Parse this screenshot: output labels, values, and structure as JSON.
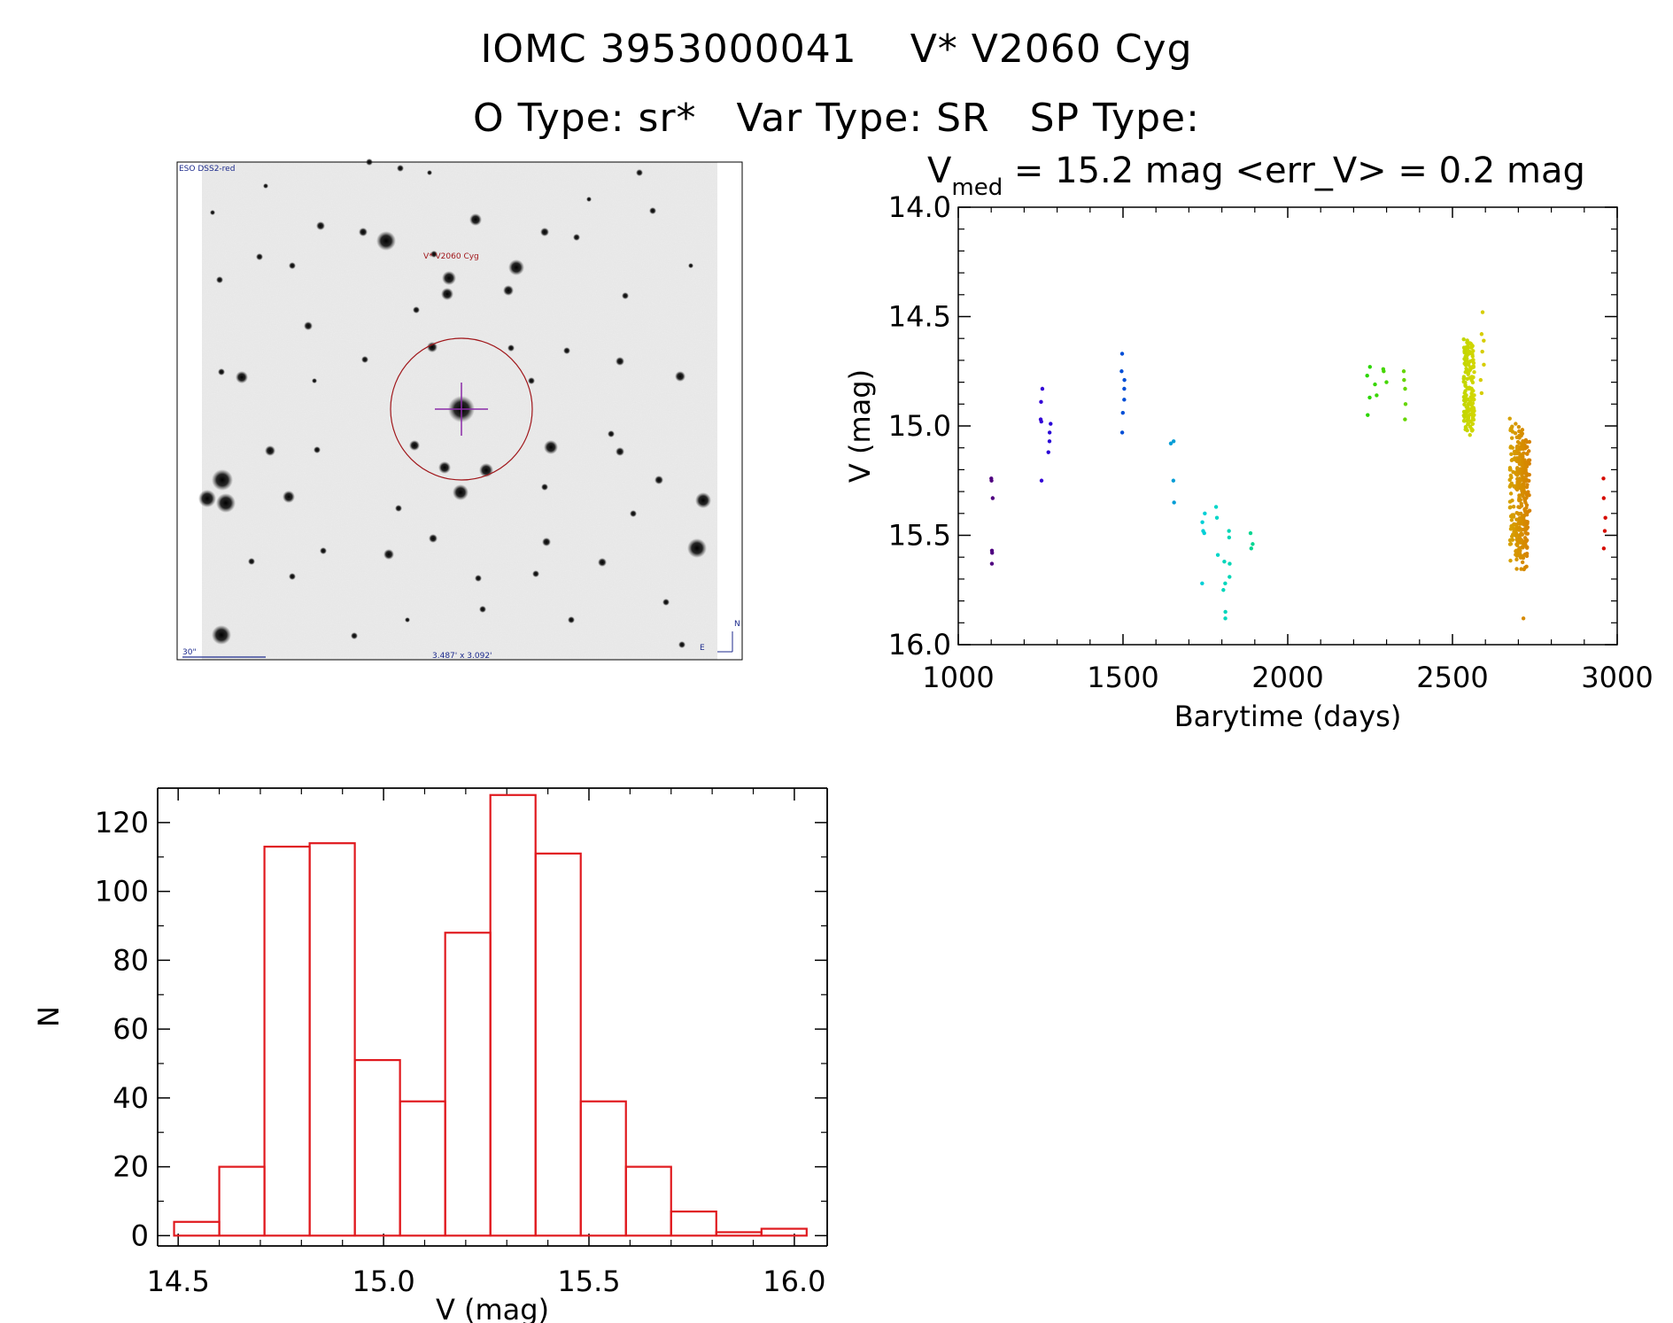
{
  "header": {
    "object_id": "IOMC 3953000041",
    "object_name": "V* V2060 Cyg",
    "o_type": "O Type: sr*",
    "var_type": "Var Type: SR",
    "sp_type": "SP Type:"
  },
  "finder": {
    "survey_label": "ESO DSS2-red",
    "target_label": "V* V2060 Cyg",
    "scale_label": "30\"",
    "fov_label": "3.487' x 3.092'",
    "compass_n": "N",
    "compass_e": "E"
  },
  "colors": {
    "histogram": "#e0191e",
    "finder_circle": "#a0161a",
    "finder_cross": "#8a2ba8",
    "finder_text": "#1c2a8c"
  },
  "chart_data": [
    {
      "type": "scatter",
      "subtitle_prefix": "V",
      "subtitle_sub": "med",
      "subtitle_rest": " = 15.2 mag <err_V> = 0.2 mag",
      "xlabel": "Barytime (days)",
      "ylabel": "V (mag)",
      "xlim": [
        1000,
        3000
      ],
      "ylim": [
        16.0,
        14.0
      ],
      "y_inverted": true,
      "x_ticks": [
        1000,
        1500,
        2000,
        2500,
        3000
      ],
      "y_ticks": [
        "14.0",
        "14.5",
        "15.0",
        "15.5",
        "16.0"
      ],
      "color_by": "time (rainbow)",
      "groups": [
        {
          "x": 1100,
          "y": [
            15.25,
            15.24,
            15.33,
            15.57,
            15.58,
            15.63
          ]
        },
        {
          "x": 1255,
          "y": [
            14.83,
            14.89,
            14.97,
            14.98,
            15.25
          ]
        },
        {
          "x": 1275,
          "y": [
            14.99,
            15.03,
            15.07,
            15.12
          ]
        },
        {
          "x": 1500,
          "y": [
            14.67,
            14.75,
            14.79,
            14.83,
            14.88,
            14.94,
            15.03
          ]
        },
        {
          "x": 1650,
          "y": [
            15.07,
            15.08,
            15.25,
            15.35
          ]
        },
        {
          "x": 1745,
          "y": [
            15.4,
            15.44,
            15.48,
            15.49,
            15.72
          ]
        },
        {
          "x": 1785,
          "y": [
            15.37,
            15.42,
            15.59
          ]
        },
        {
          "x": 1810,
          "y": [
            15.62,
            15.72,
            15.75,
            15.85,
            15.88
          ]
        },
        {
          "x": 1820,
          "y": [
            15.48,
            15.51,
            15.63,
            15.69
          ]
        },
        {
          "x": 1890,
          "y": [
            15.49,
            15.54,
            15.56
          ]
        },
        {
          "x": 2245,
          "y": [
            14.73,
            14.77,
            14.87,
            14.95
          ]
        },
        {
          "x": 2270,
          "y": [
            14.81,
            14.86
          ]
        },
        {
          "x": 2295,
          "y": [
            14.74,
            14.75,
            14.8
          ]
        },
        {
          "x": 2355,
          "y": [
            14.75,
            14.79,
            14.83,
            14.9,
            14.97
          ]
        },
        {
          "x": 2550,
          "y_range": [
            14.57,
            15.06
          ],
          "count": 160
        },
        {
          "x": 2590,
          "y": [
            14.48,
            14.58,
            14.61,
            14.66,
            14.72,
            14.79,
            14.85
          ]
        },
        {
          "x": 2690,
          "y_range": [
            14.9,
            15.65
          ],
          "count": 110
        },
        {
          "x": 2710,
          "y_range": [
            15.0,
            15.7
          ],
          "count": 110
        },
        {
          "x": 2718,
          "y_range": [
            15.0,
            15.68
          ],
          "count": 110
        },
        {
          "x": 2718,
          "y": [
            15.88
          ]
        },
        {
          "x": 2960,
          "y": [
            15.24,
            15.33,
            15.42,
            15.48,
            15.56
          ]
        }
      ]
    },
    {
      "type": "bar",
      "style": "histogram-outline",
      "xlabel": "V (mag)",
      "ylabel": "N",
      "xlim": [
        14.45,
        16.08
      ],
      "ylim": [
        -3,
        130
      ],
      "x_ticks": [
        "14.5",
        "15.0",
        "15.5",
        "16.0"
      ],
      "y_ticks": [
        "0",
        "20",
        "40",
        "60",
        "80",
        "100",
        "120"
      ],
      "bin_edges": [
        14.49,
        14.6,
        14.71,
        14.82,
        14.93,
        15.04,
        15.15,
        15.26,
        15.37,
        15.48,
        15.59,
        15.7,
        15.81,
        15.92,
        16.03
      ],
      "values": [
        4,
        20,
        113,
        114,
        51,
        39,
        88,
        128,
        111,
        39,
        20,
        7,
        1,
        2
      ],
      "categories": [
        "14.49",
        "14.60",
        "14.71",
        "14.82",
        "14.93",
        "15.04",
        "15.15",
        "15.26",
        "15.37",
        "15.48",
        "15.59",
        "15.70",
        "15.81",
        "15.92"
      ]
    }
  ]
}
